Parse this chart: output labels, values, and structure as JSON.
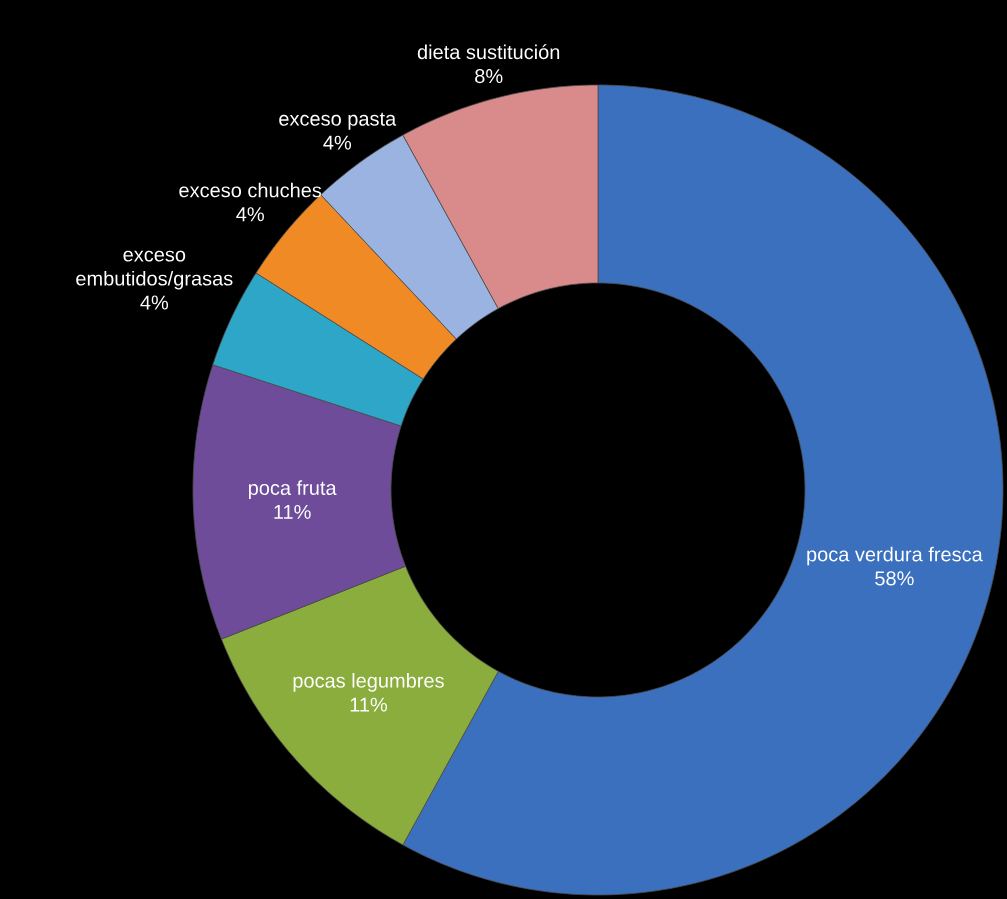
{
  "chart_data": {
    "type": "donut",
    "categories": [
      "poca verdura fresca",
      "pocas legumbres",
      "poca fruta",
      "exceso embutidos/grasas",
      "exceso chuches",
      "exceso pasta",
      "dieta sustitución"
    ],
    "values": [
      58,
      11,
      11,
      4,
      4,
      4,
      8
    ],
    "colors": [
      "#3b70bf",
      "#8aad3d",
      "#6e4c9a",
      "#2ea6c8",
      "#ef8a25",
      "#9ab3e0",
      "#d98b8b"
    ],
    "value_labels": [
      "58%",
      "11%",
      "11%",
      "4%",
      "4%",
      "4%",
      "8%"
    ]
  }
}
